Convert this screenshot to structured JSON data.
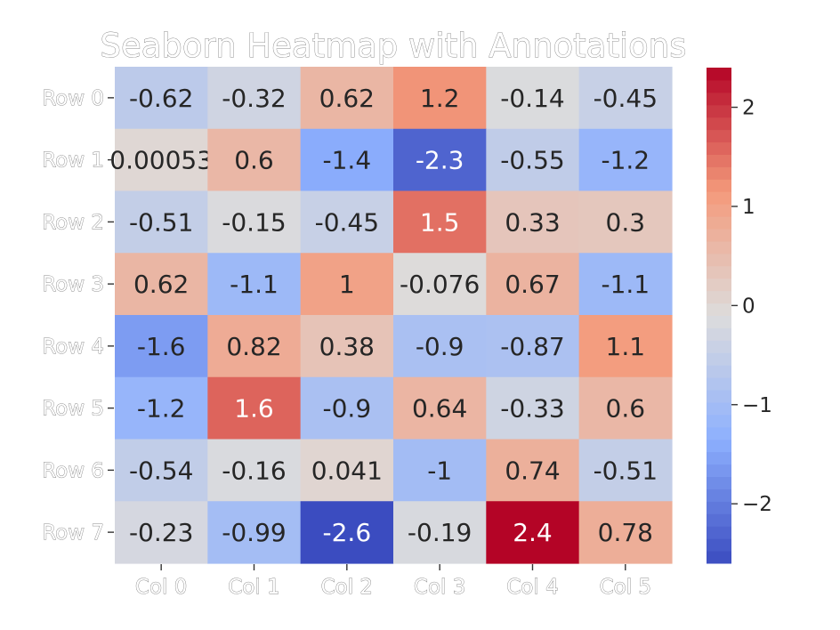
{
  "chart_data": {
    "type": "heatmap",
    "title": "Seaborn Heatmap with Annotations",
    "rows": [
      "Row 0",
      "Row 1",
      "Row 2",
      "Row 3",
      "Row 4",
      "Row 5",
      "Row 6",
      "Row 7"
    ],
    "columns": [
      "Col 0",
      "Col 1",
      "Col 2",
      "Col 3",
      "Col 4",
      "Col 5"
    ],
    "values": [
      [
        -0.62,
        -0.32,
        0.62,
        1.2,
        -0.14,
        -0.45
      ],
      [
        0.00053,
        0.6,
        -1.4,
        -2.3,
        -0.55,
        -1.2
      ],
      [
        -0.51,
        -0.15,
        -0.45,
        1.5,
        0.33,
        0.3
      ],
      [
        0.62,
        -1.1,
        1,
        -0.076,
        0.67,
        -1.1
      ],
      [
        -1.6,
        0.82,
        0.38,
        -0.9,
        -0.87,
        1.1
      ],
      [
        -1.2,
        1.6,
        -0.9,
        0.64,
        -0.33,
        0.6
      ],
      [
        -0.54,
        -0.16,
        0.041,
        -1,
        0.74,
        -0.51
      ],
      [
        -0.23,
        -0.99,
        -2.6,
        -0.19,
        2.4,
        0.78
      ]
    ],
    "annotations": [
      [
        "-0.62",
        "-0.32",
        "0.62",
        "1.2",
        "-0.14",
        "-0.45"
      ],
      [
        "0.00053",
        "0.6",
        "-1.4",
        "-2.3",
        "-0.55",
        "-1.2"
      ],
      [
        "-0.51",
        "-0.15",
        "-0.45",
        "1.5",
        "0.33",
        "0.3"
      ],
      [
        "0.62",
        "-1.1",
        "1",
        "-0.076",
        "0.67",
        "-1.1"
      ],
      [
        "-1.6",
        "0.82",
        "0.38",
        "-0.9",
        "-0.87",
        "1.1"
      ],
      [
        "-1.2",
        "1.6",
        "-0.9",
        "0.64",
        "-0.33",
        "0.6"
      ],
      [
        "-0.54",
        "-0.16",
        "0.041",
        "-1",
        "0.74",
        "-0.51"
      ],
      [
        "-0.23",
        "-0.99",
        "-2.6",
        "-0.19",
        "2.4",
        "0.78"
      ]
    ],
    "colormap": "coolwarm",
    "colormap_stops": [
      "#3b4cc0",
      "#8db0fe",
      "#dddcdc",
      "#f49a7b",
      "#b40426"
    ],
    "vmin": -2.6,
    "vmax": 2.4,
    "colorbar": {
      "ticks": [
        2,
        1,
        0,
        -1,
        -2
      ],
      "tick_labels": [
        "2",
        "1",
        "0",
        "−1",
        "−2"
      ],
      "discrete_levels": 40
    },
    "grid": false,
    "legend": "colorbar-right"
  }
}
